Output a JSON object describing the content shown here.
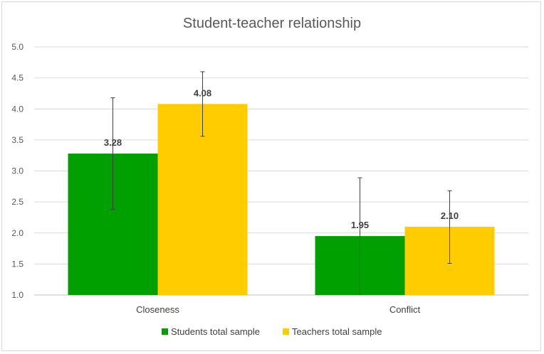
{
  "chart_data": {
    "type": "bar",
    "title": "Student-teacher relationship",
    "categories": [
      "Closeness",
      "Conflict"
    ],
    "series": [
      {
        "name": "Students total sample",
        "color": "#00A000",
        "values": [
          3.28,
          1.95
        ],
        "labels": [
          "3.28",
          "1.95"
        ],
        "error_low": [
          2.38,
          1.0
        ],
        "error_high": [
          4.18,
          2.89
        ]
      },
      {
        "name": "Teachers total sample",
        "color": "#FFCC00",
        "values": [
          4.08,
          2.1
        ],
        "labels": [
          "4.08",
          "2.10"
        ],
        "error_low": [
          3.56,
          1.51
        ],
        "error_high": [
          4.6,
          2.68
        ]
      }
    ],
    "ylim": [
      1.0,
      5.0
    ],
    "yticks": [
      "1.0",
      "1.5",
      "2.0",
      "2.5",
      "3.0",
      "3.5",
      "4.0",
      "4.5",
      "5.0"
    ],
    "grid": true,
    "legend": "bottom"
  }
}
